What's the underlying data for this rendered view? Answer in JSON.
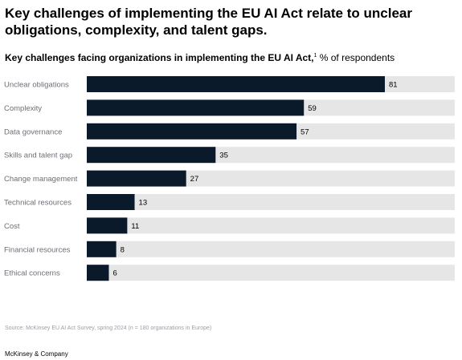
{
  "title": "Key challenges of implementing the EU AI Act relate to unclear obligations, complexity, and talent gaps.",
  "subtitle": {
    "bold": "Key challenges facing organizations in implementing the EU AI Act,",
    "footnote_marker": "1",
    "rest": " % of respondents"
  },
  "colors": {
    "bar": "#0b1a2b",
    "track": "#e6e6e6"
  },
  "chart_data": {
    "type": "bar",
    "orientation": "horizontal",
    "categories": [
      "Unclear obligations",
      "Complexity",
      "Data governance",
      "Skills and talent gap",
      "Change management",
      "Technical resources",
      "Cost",
      "Financial resources",
      "Ethical concerns"
    ],
    "values": [
      81,
      59,
      57,
      35,
      27,
      13,
      11,
      8,
      6
    ],
    "value_labels": [
      "81",
      "59",
      "57",
      "35",
      "27",
      "13",
      "11",
      "8",
      "6"
    ],
    "xlim": [
      0,
      100
    ]
  },
  "source": "Source: McKinsey EU AI Act Survey, spring 2024 (n = 180 organizations in Europe)",
  "brand": "McKinsey & Company"
}
